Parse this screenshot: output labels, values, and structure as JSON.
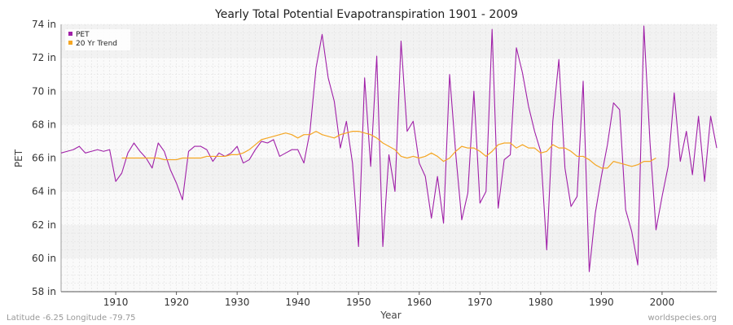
{
  "chart_data": {
    "type": "line",
    "title": "Yearly Total Potential Evapotranspiration 1901 - 2009",
    "xlabel": "Year",
    "ylabel": "PET",
    "xlim": [
      1901,
      2009
    ],
    "ylim": [
      58,
      74
    ],
    "x_ticks": [
      1910,
      1920,
      1930,
      1940,
      1950,
      1960,
      1970,
      1980,
      1990,
      2000
    ],
    "y_ticks": [
      58,
      60,
      62,
      64,
      66,
      68,
      70,
      72,
      74
    ],
    "y_tick_labels": [
      "58 in",
      "60 in",
      "62 in",
      "64 in",
      "66 in",
      "68 in",
      "70 in",
      "72 in",
      "74 in"
    ],
    "legend_position": "top-left",
    "grid": true,
    "series": [
      {
        "name": "PET",
        "color": "#a020a8",
        "x": [
          1901,
          1902,
          1903,
          1904,
          1905,
          1906,
          1907,
          1908,
          1909,
          1910,
          1911,
          1912,
          1913,
          1914,
          1915,
          1916,
          1917,
          1918,
          1919,
          1920,
          1921,
          1922,
          1923,
          1924,
          1925,
          1926,
          1927,
          1928,
          1929,
          1930,
          1931,
          1932,
          1933,
          1934,
          1935,
          1936,
          1937,
          1938,
          1939,
          1940,
          1941,
          1942,
          1943,
          1944,
          1945,
          1946,
          1947,
          1948,
          1949,
          1950,
          1951,
          1952,
          1953,
          1954,
          1955,
          1956,
          1957,
          1958,
          1959,
          1960,
          1961,
          1962,
          1963,
          1964,
          1965,
          1966,
          1967,
          1968,
          1969,
          1970,
          1971,
          1972,
          1973,
          1974,
          1975,
          1976,
          1977,
          1978,
          1979,
          1980,
          1981,
          1982,
          1983,
          1984,
          1985,
          1986,
          1987,
          1988,
          1989,
          1990,
          1991,
          1992,
          1993,
          1994,
          1995,
          1996,
          1997,
          1998,
          1999,
          2000,
          2001,
          2002,
          2003,
          2004,
          2005,
          2006,
          2007,
          2008,
          2009
        ],
        "values": [
          66.3,
          66.4,
          66.5,
          66.7,
          66.3,
          66.4,
          66.5,
          66.4,
          66.5,
          64.6,
          65.1,
          66.3,
          66.9,
          66.4,
          66.0,
          65.4,
          66.9,
          66.4,
          65.3,
          64.5,
          63.5,
          66.4,
          66.7,
          66.7,
          66.5,
          65.8,
          66.3,
          66.1,
          66.3,
          66.7,
          65.7,
          65.9,
          66.5,
          67.0,
          66.9,
          67.1,
          66.1,
          66.3,
          66.5,
          66.5,
          65.7,
          67.6,
          71.4,
          73.4,
          70.8,
          69.4,
          66.6,
          68.2,
          65.7,
          60.7,
          70.8,
          65.5,
          72.1,
          60.7,
          66.2,
          64.0,
          73.0,
          67.6,
          68.2,
          65.7,
          64.9,
          62.4,
          64.9,
          62.1,
          71.0,
          66.3,
          62.3,
          63.9,
          70.0,
          63.3,
          64.0,
          73.7,
          63.0,
          65.9,
          66.2,
          72.6,
          71.1,
          69.1,
          67.6,
          66.4,
          60.5,
          68.2,
          71.9,
          65.4,
          63.1,
          63.7,
          70.6,
          59.2,
          62.7,
          64.9,
          66.8,
          69.3,
          68.9,
          62.9,
          61.6,
          59.6,
          73.9,
          67.0,
          61.7,
          63.7,
          65.5,
          69.9,
          65.8,
          67.6,
          65.0,
          68.5,
          64.6,
          68.5,
          66.6
        ]
      },
      {
        "name": "20 Yr Trend",
        "color": "#f5a623",
        "x": [
          1911,
          1912,
          1913,
          1914,
          1915,
          1916,
          1917,
          1918,
          1919,
          1920,
          1921,
          1922,
          1923,
          1924,
          1925,
          1926,
          1927,
          1928,
          1929,
          1930,
          1931,
          1932,
          1933,
          1934,
          1935,
          1936,
          1937,
          1938,
          1939,
          1940,
          1941,
          1942,
          1943,
          1944,
          1945,
          1946,
          1947,
          1948,
          1949,
          1950,
          1951,
          1952,
          1953,
          1954,
          1955,
          1956,
          1957,
          1958,
          1959,
          1960,
          1961,
          1962,
          1963,
          1964,
          1965,
          1966,
          1967,
          1968,
          1969,
          1970,
          1971,
          1972,
          1973,
          1974,
          1975,
          1976,
          1977,
          1978,
          1979,
          1980,
          1981,
          1982,
          1983,
          1984,
          1985,
          1986,
          1987,
          1988,
          1989,
          1990,
          1991,
          1992,
          1993,
          1994,
          1995,
          1996,
          1997,
          1998,
          1999
        ],
        "values": [
          66.0,
          66.0,
          66.0,
          66.0,
          66.0,
          66.0,
          66.0,
          65.9,
          65.9,
          65.9,
          66.0,
          66.0,
          66.0,
          66.0,
          66.1,
          66.1,
          66.1,
          66.1,
          66.2,
          66.2,
          66.3,
          66.5,
          66.8,
          67.1,
          67.2,
          67.3,
          67.4,
          67.5,
          67.4,
          67.2,
          67.4,
          67.4,
          67.6,
          67.4,
          67.3,
          67.2,
          67.4,
          67.5,
          67.6,
          67.6,
          67.5,
          67.4,
          67.2,
          66.9,
          66.7,
          66.5,
          66.1,
          66.0,
          66.1,
          66.0,
          66.1,
          66.3,
          66.1,
          65.8,
          66.0,
          66.4,
          66.7,
          66.6,
          66.6,
          66.4,
          66.1,
          66.4,
          66.8,
          66.9,
          66.9,
          66.6,
          66.8,
          66.6,
          66.6,
          66.3,
          66.4,
          66.8,
          66.6,
          66.6,
          66.4,
          66.1,
          66.1,
          65.9,
          65.6,
          65.4,
          65.4,
          65.8,
          65.7,
          65.6,
          65.5,
          65.6,
          65.8,
          65.8,
          66.0
        ]
      }
    ]
  },
  "footer": {
    "left": "Latitude -6.25 Longitude -79.75",
    "right": "worldspecies.org"
  }
}
